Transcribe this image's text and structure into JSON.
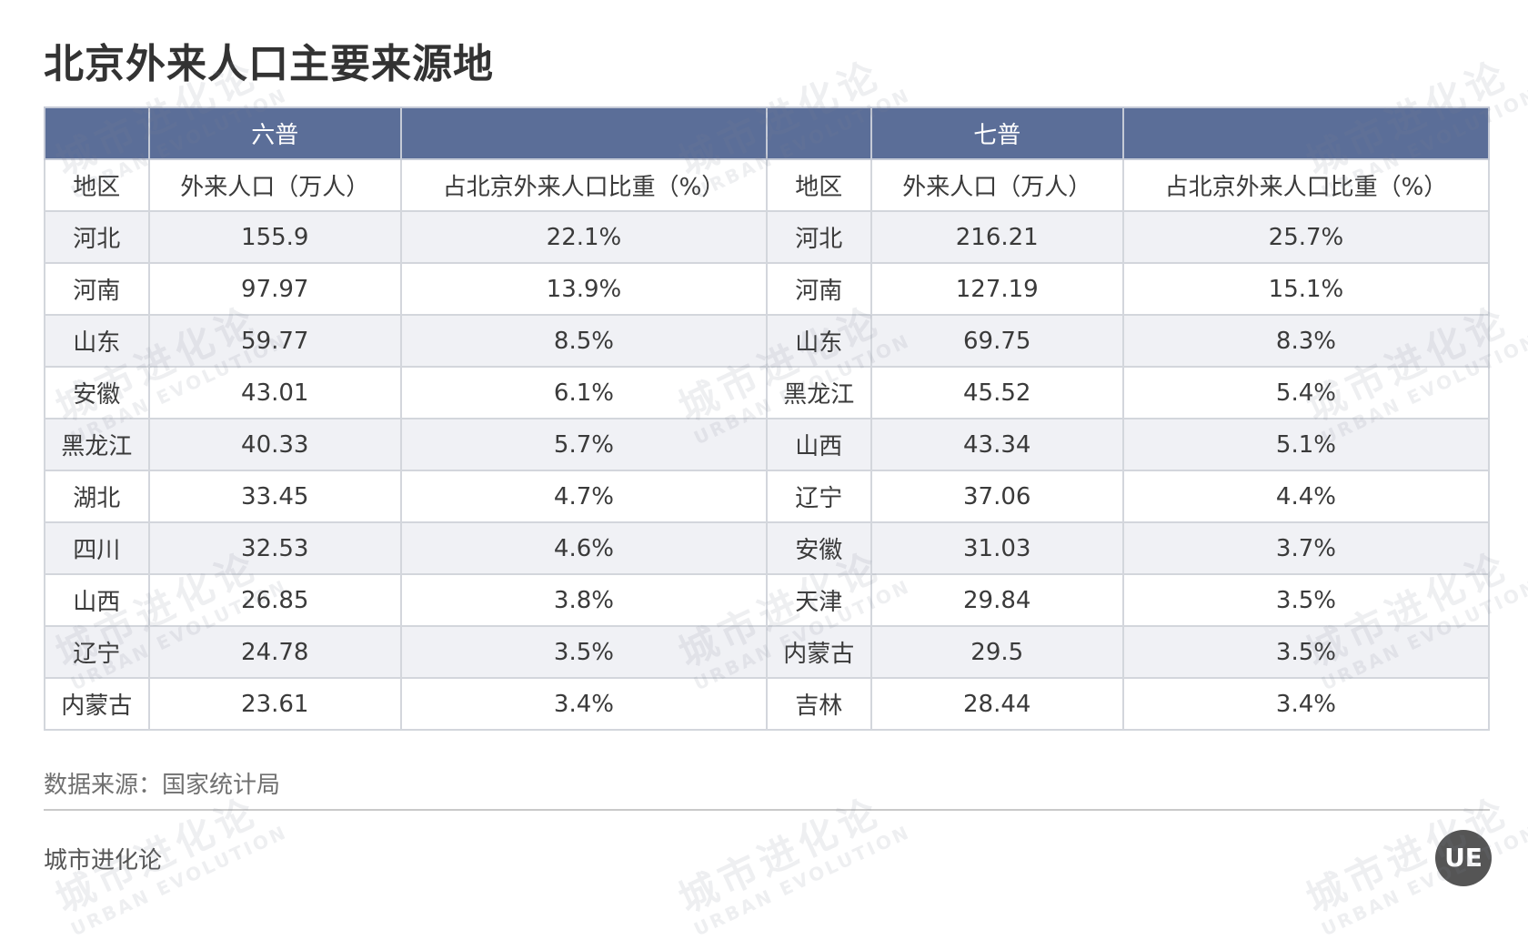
{
  "title": "北京外来人口主要来源地",
  "table": {
    "groups": [
      "六普",
      "七普"
    ],
    "subheaders": [
      "地区",
      "外来人口（万人）",
      "占北京外来人口比重（%）",
      "地区",
      "外来人口（万人）",
      "占北京外来人口比重（%）"
    ],
    "rows": [
      [
        "河北",
        "155.9",
        "22.1%",
        "河北",
        "216.21",
        "25.7%"
      ],
      [
        "河南",
        "97.97",
        "13.9%",
        "河南",
        "127.19",
        "15.1%"
      ],
      [
        "山东",
        "59.77",
        "8.5%",
        "山东",
        "69.75",
        "8.3%"
      ],
      [
        "安徽",
        "43.01",
        "6.1%",
        "黑龙江",
        "45.52",
        "5.4%"
      ],
      [
        "黑龙江",
        "40.33",
        "5.7%",
        "山西",
        "43.34",
        "5.1%"
      ],
      [
        "湖北",
        "33.45",
        "4.7%",
        "辽宁",
        "37.06",
        "4.4%"
      ],
      [
        "四川",
        "32.53",
        "4.6%",
        "安徽",
        "31.03",
        "3.7%"
      ],
      [
        "山西",
        "26.85",
        "3.8%",
        "天津",
        "29.84",
        "3.5%"
      ],
      [
        "辽宁",
        "24.78",
        "3.5%",
        "内蒙古",
        "29.5",
        "3.5%"
      ],
      [
        "内蒙古",
        "23.61",
        "3.4%",
        "吉林",
        "28.44",
        "3.4%"
      ]
    ]
  },
  "source": "数据来源：国家统计局",
  "brand": "城市进化论",
  "logo_text": "UE",
  "watermark": {
    "cn": "城市进化论",
    "en": "URBAN EVOLUTION"
  },
  "colors": {
    "header_bg": "#5b6e98",
    "stripe": "#f0f1f5"
  }
}
